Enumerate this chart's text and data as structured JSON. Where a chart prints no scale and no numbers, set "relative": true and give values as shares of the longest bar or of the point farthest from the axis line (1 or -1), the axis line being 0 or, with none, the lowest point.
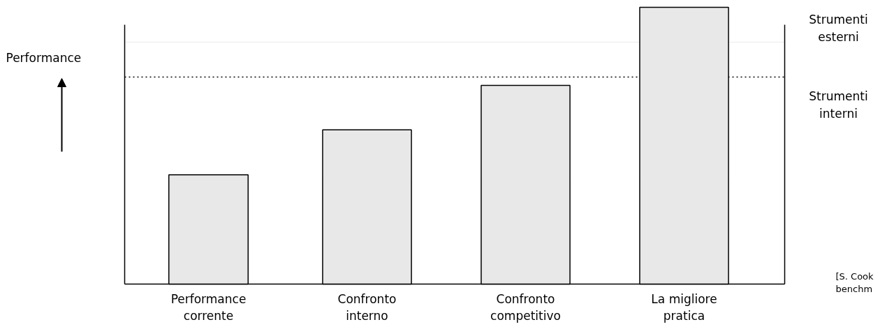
{
  "chart_data": {
    "type": "bar",
    "relative": true,
    "ylabel": "Performance",
    "categories": [
      "Performance corrente",
      "Confronto interno",
      "Confronto competitivo",
      "La migliore pratica"
    ],
    "series": [
      {
        "color": "#e8e8e8",
        "values": [
          0.395,
          0.557,
          0.718,
          1.0
        ]
      }
    ],
    "ref_lines": [
      {
        "axis": "y",
        "value": 0.748,
        "color": "#000000",
        "line_style": "dotted"
      },
      {
        "axis": "y",
        "value": 0.874,
        "color": "#f0f0f0",
        "line_style": "solid"
      }
    ],
    "annotations": [
      "Strumenti\nesterni",
      "Strumenti\ninterni",
      "[S. Cook\nbenchm"
    ]
  }
}
